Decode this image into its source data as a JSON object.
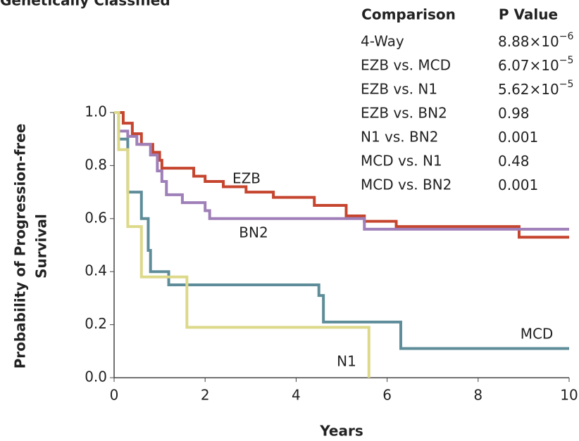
{
  "chart_data": {
    "type": "step",
    "title": "Genetically Classified",
    "xlabel": "Years",
    "ylabel": [
      "Probability of Progression-free",
      "Survival"
    ],
    "xlim": [
      0,
      10
    ],
    "ylim": [
      0,
      1
    ],
    "xticks": [
      0,
      2,
      4,
      6,
      8,
      10
    ],
    "yticks": [
      {
        "value": 0,
        "label": "0.0"
      },
      0.2,
      0.4,
      0.6,
      0.8,
      {
        "value": 1,
        "label": "1.0"
      }
    ],
    "series": [
      {
        "name": "EZB",
        "color": "#c5452f",
        "x": [
          0,
          0.2,
          0.4,
          0.6,
          0.85,
          1.0,
          1.05,
          1.75,
          2.0,
          2.4,
          2.9,
          3.5,
          4.4,
          5.1,
          5.5,
          6.2,
          8.9,
          10
        ],
        "values": [
          1.0,
          0.96,
          0.92,
          0.88,
          0.85,
          0.82,
          0.79,
          0.76,
          0.74,
          0.72,
          0.7,
          0.68,
          0.65,
          0.61,
          0.59,
          0.57,
          0.53,
          0.53
        ]
      },
      {
        "name": "BN2",
        "color": "#9f7fb8",
        "x": [
          0,
          0.1,
          0.3,
          0.5,
          0.8,
          0.95,
          1.05,
          1.15,
          1.5,
          2.0,
          2.1,
          5.5,
          10
        ],
        "values": [
          1.0,
          0.93,
          0.91,
          0.88,
          0.84,
          0.78,
          0.74,
          0.69,
          0.66,
          0.63,
          0.6,
          0.56,
          0.56
        ]
      },
      {
        "name": "MCD",
        "color": "#5e8d99",
        "x": [
          0,
          0.1,
          0.3,
          0.6,
          0.75,
          0.8,
          1.2,
          4.5,
          4.6,
          6.3,
          10
        ],
        "values": [
          1.0,
          0.9,
          0.7,
          0.6,
          0.48,
          0.4,
          0.35,
          0.31,
          0.21,
          0.11,
          0.11
        ]
      },
      {
        "name": "N1",
        "color": "#ddd98a",
        "x": [
          0,
          0.1,
          0.3,
          0.6,
          1.6,
          5.6
        ],
        "values": [
          1.0,
          0.86,
          0.57,
          0.38,
          0.19,
          0
        ]
      }
    ],
    "table": {
      "header": [
        "Comparison",
        "P Value"
      ],
      "rows": [
        {
          "comparison": "4-Way",
          "p": "8.88×10",
          "exp": "−6"
        },
        {
          "comparison": "EZB vs. MCD",
          "p": "6.07×10",
          "exp": "−5"
        },
        {
          "comparison": "EZB vs. N1",
          "p": "5.62×10",
          "exp": "−5"
        },
        {
          "comparison": "EZB vs. BN2",
          "p": "0.98"
        },
        {
          "comparison": "N1 vs. BN2",
          "p": "0.001"
        },
        {
          "comparison": "MCD vs. N1",
          "p": "0.48"
        },
        {
          "comparison": "MCD vs. BN2",
          "p": "0.001"
        }
      ]
    }
  }
}
